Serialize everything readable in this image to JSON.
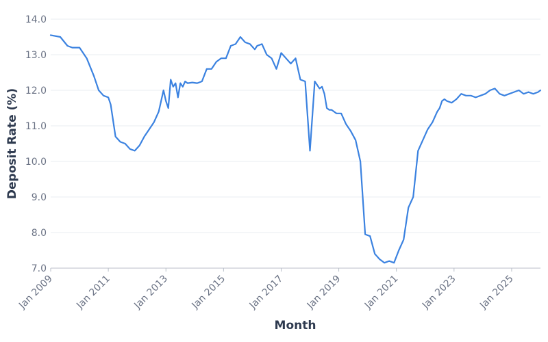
{
  "chart_data": {
    "type": "line",
    "xlabel": "Month",
    "ylabel": "Deposit Rate (%)",
    "x_start": "Jan 2009",
    "x_end": "Jan 2026",
    "ylim": [
      7.0,
      14.0
    ],
    "yticks": [
      7.0,
      8.0,
      9.0,
      10.0,
      11.0,
      12.0,
      13.0,
      14.0
    ],
    "yticklabels": [
      "7.0",
      "8.0",
      "9.0",
      "10.0",
      "11.0",
      "12.0",
      "13.0",
      "14.0"
    ],
    "xticks": [
      {
        "date": "2009-01",
        "label": "Jan 2009"
      },
      {
        "date": "2011-01",
        "label": "Jan 2011"
      },
      {
        "date": "2013-01",
        "label": "Jan 2013"
      },
      {
        "date": "2015-01",
        "label": "Jan 2015"
      },
      {
        "date": "2017-01",
        "label": "Jan 2017"
      },
      {
        "date": "2019-01",
        "label": "Jan 2019"
      },
      {
        "date": "2021-01",
        "label": "Jan 2021"
      },
      {
        "date": "2023-01",
        "label": "Jan 2023"
      },
      {
        "date": "2025-01",
        "label": "Jan 2025"
      }
    ],
    "grid": true,
    "color": "#3b82e0",
    "series": [
      {
        "x": [
          "2009-01",
          "2009-05",
          "2009-08",
          "2009-10",
          "2010-01",
          "2010-04",
          "2010-07",
          "2010-09",
          "2010-11",
          "2011-01",
          "2011-02",
          "2011-04",
          "2011-06",
          "2011-08",
          "2011-10",
          "2011-12",
          "2012-02",
          "2012-04",
          "2012-06",
          "2012-08",
          "2012-10",
          "2012-12",
          "2013-01",
          "2013-02",
          "2013-03",
          "2013-04",
          "2013-05",
          "2013-06",
          "2013-07",
          "2013-08",
          "2013-09",
          "2013-10",
          "2013-12",
          "2014-02",
          "2014-04",
          "2014-06",
          "2014-08",
          "2014-10",
          "2014-12",
          "2015-02",
          "2015-04",
          "2015-06",
          "2015-08",
          "2015-10",
          "2015-12",
          "2016-02",
          "2016-03",
          "2016-05",
          "2016-07",
          "2016-09",
          "2016-11",
          "2017-01",
          "2017-03",
          "2017-05",
          "2017-07",
          "2017-09",
          "2017-11",
          "2018-01",
          "2018-03",
          "2018-05",
          "2018-06",
          "2018-07",
          "2018-08",
          "2018-09",
          "2018-10",
          "2018-12",
          "2019-02",
          "2019-04",
          "2019-06",
          "2019-08",
          "2019-10",
          "2019-12",
          "2020-02",
          "2020-04",
          "2020-06",
          "2020-08",
          "2020-10",
          "2020-12",
          "2021-02",
          "2021-04",
          "2021-06",
          "2021-08",
          "2021-10",
          "2021-12",
          "2022-02",
          "2022-04",
          "2022-06",
          "2022-07",
          "2022-08",
          "2022-09",
          "2022-10",
          "2022-12",
          "2023-02",
          "2023-04",
          "2023-06",
          "2023-08",
          "2023-10",
          "2023-12",
          "2024-02",
          "2024-04",
          "2024-06",
          "2024-08",
          "2024-10",
          "2024-12",
          "2025-02",
          "2025-04",
          "2025-06",
          "2025-08",
          "2025-10",
          "2025-12",
          "2026-01"
        ],
        "y": [
          13.55,
          13.5,
          13.25,
          13.2,
          13.2,
          12.9,
          12.4,
          12.0,
          11.85,
          11.8,
          11.6,
          10.7,
          10.55,
          10.5,
          10.35,
          10.3,
          10.45,
          10.7,
          10.9,
          11.1,
          11.4,
          12.0,
          11.7,
          11.5,
          12.3,
          12.1,
          12.2,
          11.8,
          12.2,
          12.1,
          12.25,
          12.2,
          12.22,
          12.2,
          12.25,
          12.6,
          12.6,
          12.8,
          12.9,
          12.9,
          13.25,
          13.3,
          13.5,
          13.35,
          13.3,
          13.15,
          13.25,
          13.3,
          13.0,
          12.9,
          12.6,
          13.05,
          12.9,
          12.75,
          12.9,
          12.3,
          12.25,
          10.3,
          12.25,
          12.05,
          12.1,
          11.9,
          11.5,
          11.45,
          11.45,
          11.35,
          11.35,
          11.05,
          10.85,
          10.6,
          10.0,
          7.95,
          7.9,
          7.4,
          7.25,
          7.15,
          7.2,
          7.15,
          7.5,
          7.8,
          8.7,
          9.0,
          10.3,
          10.6,
          10.9,
          11.1,
          11.4,
          11.5,
          11.7,
          11.75,
          11.7,
          11.65,
          11.75,
          11.9,
          11.85,
          11.85,
          11.8,
          11.85,
          11.9,
          12.0,
          12.05,
          11.9,
          11.85,
          11.9,
          11.95,
          12.0,
          11.9,
          11.95,
          11.9,
          11.95,
          12.0
        ]
      }
    ]
  }
}
